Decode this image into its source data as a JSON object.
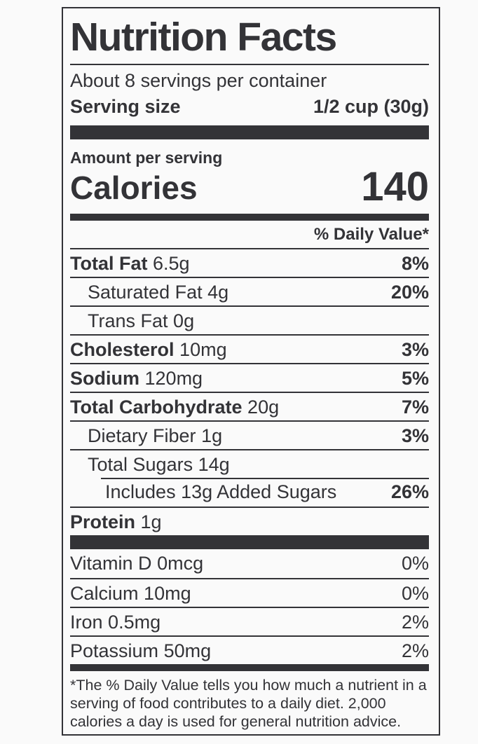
{
  "label": {
    "title": "Nutrition Facts",
    "servings_per_container": "About 8 servings per container",
    "serving_size": {
      "label": "Serving size",
      "value": "1/2 cup (30g)"
    },
    "amount_per_serving": "Amount per serving",
    "calories": {
      "label": "Calories",
      "value": "140"
    },
    "daily_value_header": "% Daily Value*",
    "nutrients": [
      {
        "name": "Total Fat",
        "amount": "6.5g",
        "percent": "8%"
      },
      {
        "name": "Saturated Fat",
        "amount": "4g",
        "percent": "20%"
      },
      {
        "name": "Trans Fat",
        "amount": "0g",
        "percent": ""
      },
      {
        "name": "Cholesterol",
        "amount": "10mg",
        "percent": "3%"
      },
      {
        "name": "Sodium",
        "amount": "120mg",
        "percent": "5%"
      },
      {
        "name": "Total Carbohydrate",
        "amount": "20g",
        "percent": "7%"
      },
      {
        "name": "Dietary Fiber",
        "amount": "1g",
        "percent": "3%"
      },
      {
        "name": "Total Sugars",
        "amount": "14g",
        "percent": ""
      },
      {
        "name": "Includes 13g Added Sugars",
        "amount": "",
        "percent": "26%"
      },
      {
        "name": "Protein",
        "amount": "1g",
        "percent": ""
      }
    ],
    "vitamins": [
      {
        "name": "Vitamin D",
        "amount": "0mcg",
        "percent": "0%"
      },
      {
        "name": "Calcium",
        "amount": "10mg",
        "percent": "0%"
      },
      {
        "name": "Iron",
        "amount": "0.5mg",
        "percent": "2%"
      },
      {
        "name": "Potassium",
        "amount": "50mg",
        "percent": "2%"
      }
    ],
    "footnote": "*The % Daily Value tells you how much a nutrient in a serving of food contributes to a daily diet. 2,000 calories a day is used for general nutrition advice.",
    "colors": {
      "text": "#333337",
      "rule": "#333337",
      "background": "#fafafa"
    }
  }
}
